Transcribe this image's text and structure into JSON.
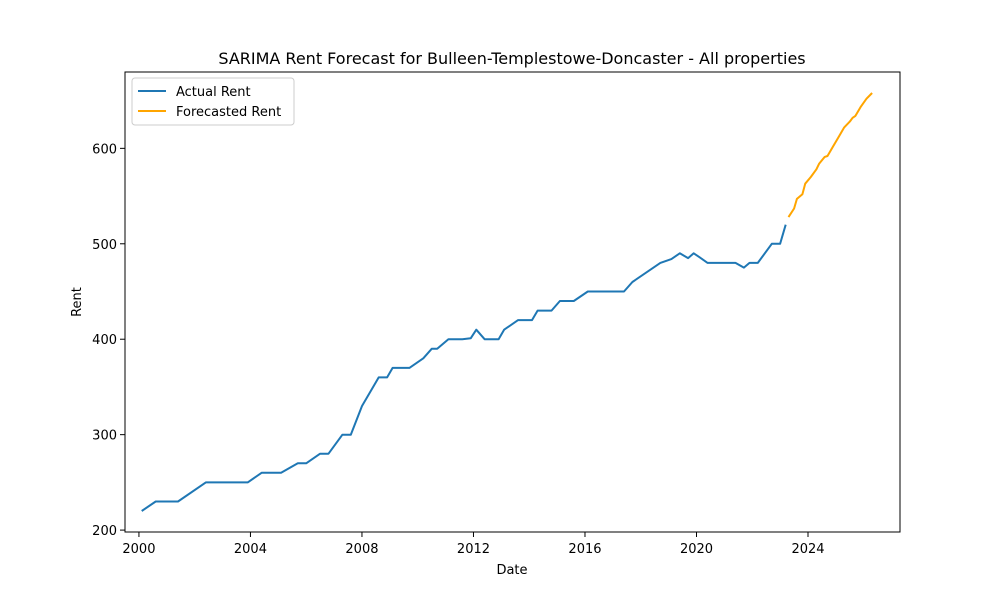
{
  "chart_data": {
    "type": "line",
    "title": "SARIMA Rent Forecast for Bulleen-Templestowe-Doncaster - All properties",
    "xlabel": "Date",
    "ylabel": "Rent",
    "xlim": [
      1999.5,
      2027.3
    ],
    "ylim": [
      198,
      680
    ],
    "x_ticks": [
      2000,
      2004,
      2008,
      2012,
      2016,
      2020,
      2024
    ],
    "y_ticks": [
      200,
      300,
      400,
      500,
      600
    ],
    "grid": false,
    "legend_position": "top-left",
    "series": [
      {
        "name": "Actual Rent",
        "color": "#1f77b4",
        "x": [
          2000.1,
          2000.6,
          2001.4,
          2002.4,
          2003.1,
          2003.9,
          2004.4,
          2005.1,
          2005.7,
          2006.0,
          2006.5,
          2006.8,
          2007.3,
          2007.6,
          2008.0,
          2008.6,
          2008.9,
          2009.1,
          2009.7,
          2010.2,
          2010.5,
          2010.7,
          2011.1,
          2011.6,
          2011.9,
          2012.1,
          2012.4,
          2012.9,
          2013.1,
          2013.6,
          2014.1,
          2014.3,
          2014.8,
          2015.1,
          2015.6,
          2016.1,
          2016.6,
          2017.1,
          2017.4,
          2017.7,
          2018.7,
          2019.1,
          2019.4,
          2019.7,
          2019.9,
          2020.1,
          2020.4,
          2021.4,
          2021.7,
          2021.9,
          2022.2,
          2022.7,
          2023.0,
          2023.2
        ],
        "values": [
          220,
          230,
          230,
          250,
          250,
          250,
          260,
          260,
          270,
          270,
          280,
          280,
          300,
          300,
          330,
          360,
          360,
          370,
          370,
          380,
          390,
          390,
          400,
          400,
          401,
          410,
          400,
          400,
          410,
          420,
          420,
          430,
          430,
          440,
          440,
          450,
          450,
          450,
          450,
          460,
          480,
          484,
          490,
          485,
          490,
          486,
          480,
          480,
          475,
          480,
          480,
          500,
          500,
          520
        ]
      },
      {
        "name": "Forecasted Rent",
        "color": "#ffa500",
        "x": [
          2023.3,
          2023.5,
          2023.6,
          2023.8,
          2023.9,
          2024.1,
          2024.3,
          2024.4,
          2024.6,
          2024.7,
          2024.9,
          2025.1,
          2025.3,
          2025.5,
          2025.6,
          2025.7,
          2025.9,
          2026.1,
          2026.3
        ],
        "values": [
          528,
          537,
          547,
          552,
          563,
          570,
          578,
          584,
          591,
          592,
          602,
          612,
          622,
          628,
          632,
          634,
          644,
          652,
          658
        ]
      }
    ]
  }
}
